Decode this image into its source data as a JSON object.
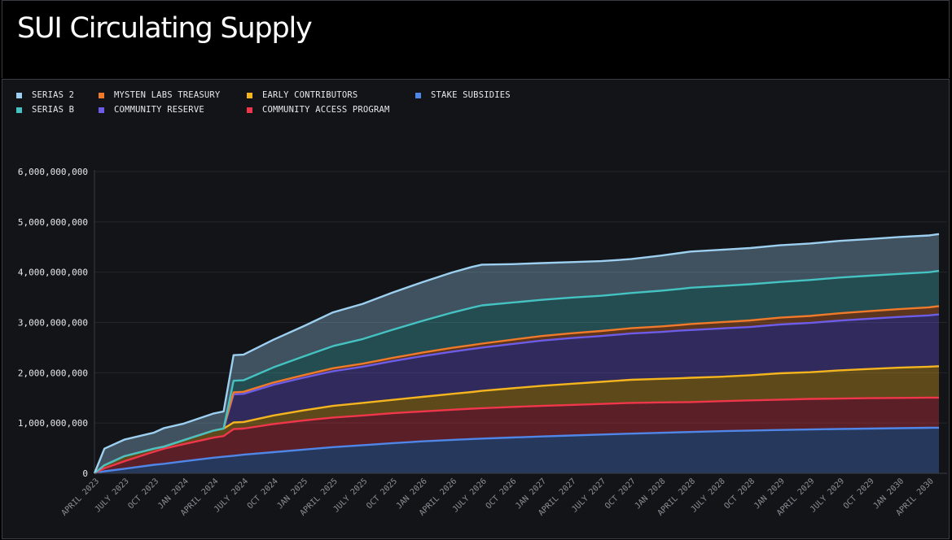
{
  "page": {
    "title": "SUI Circulating Supply"
  },
  "legend": [
    {
      "label": "SERIAS 2",
      "color": "#9dd0f0"
    },
    {
      "label": "SERIAS B",
      "color": "#45c2c2"
    },
    {
      "label": "MYSTEN LABS TREASURY",
      "color": "#f07a2a"
    },
    {
      "label": "COMMUNITY RESERVE",
      "color": "#6c5ce8"
    },
    {
      "label": "EARLY CONTRIBUTORS",
      "color": "#f5b51e"
    },
    {
      "label": "COMMUNITY ACCESS PROGRAM",
      "color": "#f0364a"
    },
    {
      "label": "STAKE SUBSIDIES",
      "color": "#4f86e8"
    }
  ],
  "chart_data": {
    "type": "area",
    "stacked": true,
    "title": "SUI Circulating Supply",
    "ylim": [
      0,
      6000000000
    ],
    "yticks": [
      {
        "value": 0,
        "label": "0"
      },
      {
        "value": 1000000000,
        "label": "1,000,000,000"
      },
      {
        "value": 2000000000,
        "label": "2,000,000,000"
      },
      {
        "value": 3000000000,
        "label": "3,000,000,000"
      },
      {
        "value": 4000000000,
        "label": "4,000,000,000"
      },
      {
        "value": 5000000000,
        "label": "5,000,000,000"
      },
      {
        "value": 6000000000,
        "label": "6,000,000,000"
      }
    ],
    "xticks": [
      "APRIL 2023",
      "JULY 2023",
      "OCT 2023",
      "JAN 2024",
      "APRIL 2024",
      "JULY 2024",
      "OCT 2024",
      "JAN 2025",
      "APRIL 2025",
      "JULY 2025",
      "OCT 2025",
      "JAN 2026",
      "APRIL 2026",
      "JULY 2026",
      "OCT 2026",
      "JAN 2027",
      "APRIL 2027",
      "JULY 2027",
      "OCT 2027",
      "JAN 2028",
      "APRIL 2028",
      "JULY 2028",
      "OCT 2028",
      "JAN 2029",
      "APRIL 2029",
      "JULY 2029",
      "OCT 2029",
      "JAN 2030",
      "APRIL 2030"
    ],
    "xlim": [
      "2023-04",
      "2030-05"
    ],
    "x": [
      "2023-04",
      "2023-05",
      "2023-07",
      "2023-10",
      "2023-11",
      "2024-01",
      "2024-04",
      "2024-05",
      "2024-06",
      "2024-07",
      "2024-10",
      "2025-01",
      "2025-04",
      "2025-07",
      "2025-10",
      "2026-01",
      "2026-04",
      "2026-06",
      "2026-07",
      "2026-10",
      "2027-01",
      "2027-04",
      "2027-07",
      "2027-10",
      "2028-01",
      "2028-03",
      "2028-04",
      "2028-07",
      "2028-10",
      "2029-01",
      "2029-04",
      "2029-07",
      "2029-10",
      "2030-01",
      "2030-04",
      "2030-05"
    ],
    "series": [
      {
        "name": "STAKE SUBSIDIES",
        "color": "#4f86e8",
        "values": [
          0,
          40000000,
          90000000,
          170000000,
          190000000,
          240000000,
          310000000,
          330000000,
          350000000,
          370000000,
          420000000,
          470000000,
          520000000,
          560000000,
          600000000,
          635000000,
          665000000,
          682000000,
          690000000,
          712000000,
          732000000,
          752000000,
          771000000,
          789000000,
          806000000,
          817000000,
          822000000,
          837000000,
          850000000,
          862000000,
          872000000,
          882000000,
          890000000,
          898000000,
          905000000,
          908000000
        ]
      },
      {
        "name": "COMMUNITY ACCESS PROGRAM",
        "color": "#f0364a",
        "values": [
          0,
          60000000,
          150000000,
          260000000,
          300000000,
          340000000,
          400000000,
          410000000,
          530000000,
          520000000,
          560000000,
          580000000,
          590000000,
          590000000,
          595000000,
          595000000,
          600000000,
          603000000,
          605000000,
          608000000,
          608000000,
          608000000,
          609000000,
          611000000,
          604000000,
          597000000,
          595000000,
          597000000,
          600000000,
          603000000,
          608000000,
          605000000,
          605000000,
          602000000,
          600000000,
          597000000
        ]
      },
      {
        "name": "EARLY CONTRIBUTORS",
        "color": "#f5b51e",
        "values": [
          0,
          60000000,
          100000000,
          60000000,
          40000000,
          80000000,
          140000000,
          150000000,
          130000000,
          130000000,
          170000000,
          200000000,
          230000000,
          250000000,
          265000000,
          290000000,
          315000000,
          333000000,
          345000000,
          370000000,
          400000000,
          420000000,
          440000000,
          460000000,
          470000000,
          476000000,
          483000000,
          486000000,
          500000000,
          525000000,
          530000000,
          560000000,
          580000000,
          600000000,
          615000000,
          625000000
        ]
      },
      {
        "name": "COMMUNITY RESERVE",
        "color": "#6c5ce8",
        "values": [
          0,
          0,
          0,
          0,
          0,
          0,
          0,
          0,
          560000000,
          560000000,
          610000000,
          650000000,
          690000000,
          720000000,
          770000000,
          810000000,
          840000000,
          855000000,
          860000000,
          880000000,
          900000000,
          910000000,
          910000000,
          920000000,
          930000000,
          950000000,
          950000000,
          960000000,
          960000000,
          970000000,
          980000000,
          990000000,
          1000000000,
          1010000000,
          1020000000,
          1030000000
        ]
      },
      {
        "name": "MYSTEN LABS TREASURY",
        "color": "#f07a2a",
        "values": [
          0,
          0,
          0,
          0,
          0,
          0,
          0,
          0,
          40000000,
          40000000,
          45000000,
          50000000,
          60000000,
          60000000,
          65000000,
          70000000,
          75000000,
          77000000,
          80000000,
          85000000,
          90000000,
          95000000,
          100000000,
          105000000,
          110000000,
          112000000,
          120000000,
          125000000,
          130000000,
          135000000,
          140000000,
          145000000,
          150000000,
          155000000,
          160000000,
          165000000
        ]
      },
      {
        "name": "SERIAS B",
        "color": "#45c2c2",
        "values": [
          0,
          0,
          0,
          0,
          0,
          0,
          0,
          0,
          230000000,
          230000000,
          300000000,
          370000000,
          440000000,
          490000000,
          560000000,
          630000000,
          700000000,
          745000000,
          760000000,
          740000000,
          720000000,
          710000000,
          700000000,
          700000000,
          710000000,
          716000000,
          720000000,
          720000000,
          720000000,
          710000000,
          715000000,
          710000000,
          705000000,
          700000000,
          700000000,
          700000000
        ]
      },
      {
        "name": "SERIAS 2",
        "color": "#9dd0f0",
        "values": [
          0,
          330000000,
          330000000,
          320000000,
          370000000,
          330000000,
          340000000,
          340000000,
          510000000,
          510000000,
          550000000,
          600000000,
          670000000,
          700000000,
          740000000,
          770000000,
          800000000,
          809000000,
          810000000,
          765000000,
          730000000,
          705000000,
          690000000,
          675000000,
          700000000,
          715000000,
          720000000,
          720000000,
          720000000,
          730000000,
          725000000,
          730000000,
          730000000,
          735000000,
          730000000,
          733000000
        ]
      }
    ]
  }
}
